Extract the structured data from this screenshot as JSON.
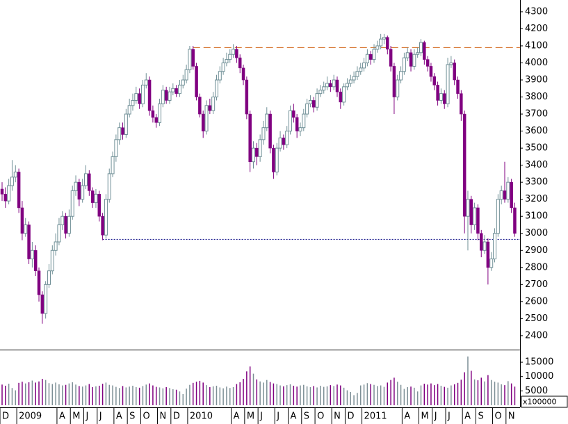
{
  "chart_data": {
    "type": "candlestick",
    "categories": [
      "D",
      null,
      null,
      null,
      null,
      "2009",
      null,
      null,
      null,
      null,
      null,
      null,
      null,
      null,
      null,
      null,
      null,
      "A",
      null,
      null,
      null,
      "M",
      null,
      null,
      null,
      "J",
      null,
      null,
      null,
      "J",
      null,
      null,
      null,
      null,
      "A",
      null,
      null,
      null,
      "S",
      null,
      null,
      null,
      "O",
      null,
      null,
      null,
      null,
      "N",
      null,
      null,
      null,
      "D",
      null,
      null,
      null,
      null,
      "2010",
      null,
      null,
      null,
      null,
      null,
      null,
      null,
      null,
      null,
      null,
      null,
      null,
      "A",
      null,
      null,
      null,
      "M",
      null,
      null,
      null,
      "J",
      null,
      null,
      null,
      null,
      "J",
      null,
      null,
      null,
      "A",
      null,
      null,
      null,
      "S",
      null,
      null,
      null,
      "O",
      null,
      null,
      null,
      null,
      "N",
      null,
      null,
      null,
      "D",
      null,
      null,
      null,
      null,
      "2011",
      null,
      null,
      null,
      null,
      null,
      null,
      null,
      null,
      null,
      null,
      null,
      "A",
      null,
      null,
      null,
      null,
      "M",
      null,
      null,
      null,
      "J",
      null,
      null,
      null,
      "J",
      null,
      null,
      null,
      null,
      "A",
      null,
      null,
      null,
      "S",
      null,
      null,
      null,
      null,
      "O",
      null,
      null,
      null,
      "N",
      null,
      null
    ],
    "ohlc": [
      [
        3260,
        3300,
        3190,
        3230
      ],
      [
        3230,
        3270,
        3150,
        3190
      ],
      [
        3190,
        3320,
        3170,
        3280
      ],
      [
        3280,
        3430,
        3250,
        3330
      ],
      [
        3330,
        3400,
        3300,
        3360
      ],
      [
        3360,
        3380,
        3120,
        3150
      ],
      [
        3150,
        3190,
        2960,
        3000
      ],
      [
        3000,
        3090,
        2980,
        3050
      ],
      [
        3050,
        3070,
        2820,
        2850
      ],
      [
        2850,
        2950,
        2800,
        2900
      ],
      [
        2900,
        2930,
        2750,
        2780
      ],
      [
        2780,
        2800,
        2600,
        2640
      ],
      [
        2640,
        2660,
        2470,
        2530
      ],
      [
        2530,
        2720,
        2500,
        2700
      ],
      [
        2700,
        2820,
        2680,
        2780
      ],
      [
        2780,
        2930,
        2760,
        2900
      ],
      [
        2900,
        3000,
        2870,
        2950
      ],
      [
        2950,
        3090,
        2930,
        3050
      ],
      [
        3050,
        3130,
        3020,
        3100
      ],
      [
        3100,
        3120,
        2970,
        3000
      ],
      [
        3000,
        3140,
        2980,
        3100
      ],
      [
        3100,
        3280,
        3080,
        3250
      ],
      [
        3250,
        3340,
        3220,
        3300
      ],
      [
        3300,
        3320,
        3160,
        3200
      ],
      [
        3200,
        3320,
        3180,
        3280
      ],
      [
        3280,
        3400,
        3260,
        3350
      ],
      [
        3350,
        3370,
        3220,
        3250
      ],
      [
        3250,
        3270,
        3150,
        3180
      ],
      [
        3180,
        3260,
        3150,
        3230
      ],
      [
        3230,
        3250,
        3070,
        3100
      ],
      [
        3100,
        3120,
        2960,
        2990
      ],
      [
        2990,
        3230,
        2970,
        3200
      ],
      [
        3200,
        3380,
        3180,
        3350
      ],
      [
        3350,
        3480,
        3330,
        3450
      ],
      [
        3450,
        3580,
        3420,
        3550
      ],
      [
        3550,
        3650,
        3520,
        3620
      ],
      [
        3620,
        3650,
        3550,
        3580
      ],
      [
        3580,
        3730,
        3560,
        3700
      ],
      [
        3700,
        3790,
        3680,
        3750
      ],
      [
        3750,
        3820,
        3720,
        3780
      ],
      [
        3780,
        3860,
        3760,
        3820
      ],
      [
        3820,
        3850,
        3730,
        3760
      ],
      [
        3760,
        3900,
        3740,
        3870
      ],
      [
        3870,
        3940,
        3850,
        3900
      ],
      [
        3900,
        3920,
        3690,
        3720
      ],
      [
        3720,
        3750,
        3650,
        3680
      ],
      [
        3680,
        3700,
        3620,
        3650
      ],
      [
        3650,
        3790,
        3630,
        3760
      ],
      [
        3760,
        3870,
        3740,
        3840
      ],
      [
        3840,
        3860,
        3760,
        3780
      ],
      [
        3780,
        3860,
        3760,
        3830
      ],
      [
        3830,
        3880,
        3810,
        3850
      ],
      [
        3850,
        3870,
        3800,
        3820
      ],
      [
        3820,
        3900,
        3800,
        3870
      ],
      [
        3870,
        3930,
        3850,
        3900
      ],
      [
        3900,
        3990,
        3880,
        3960
      ],
      [
        3960,
        4100,
        3940,
        4080
      ],
      [
        4080,
        4100,
        3960,
        3980
      ],
      [
        3980,
        4000,
        3780,
        3800
      ],
      [
        3800,
        3820,
        3680,
        3700
      ],
      [
        3700,
        3720,
        3560,
        3600
      ],
      [
        3600,
        3780,
        3580,
        3750
      ],
      [
        3750,
        3790,
        3700,
        3720
      ],
      [
        3720,
        3830,
        3700,
        3800
      ],
      [
        3800,
        3930,
        3780,
        3900
      ],
      [
        3900,
        3980,
        3880,
        3950
      ],
      [
        3950,
        4030,
        3930,
        4000
      ],
      [
        4000,
        4060,
        3980,
        4020
      ],
      [
        4020,
        4080,
        4000,
        4050
      ],
      [
        4050,
        4110,
        4030,
        4080
      ],
      [
        4080,
        4100,
        4000,
        4030
      ],
      [
        4030,
        4050,
        3940,
        3970
      ],
      [
        3970,
        3990,
        3870,
        3900
      ],
      [
        3900,
        3920,
        3670,
        3700
      ],
      [
        3700,
        3720,
        3360,
        3420
      ],
      [
        3420,
        3540,
        3380,
        3500
      ],
      [
        3500,
        3530,
        3400,
        3450
      ],
      [
        3450,
        3580,
        3420,
        3550
      ],
      [
        3550,
        3660,
        3520,
        3620
      ],
      [
        3620,
        3740,
        3600,
        3700
      ],
      [
        3700,
        3720,
        3470,
        3500
      ],
      [
        3500,
        3520,
        3320,
        3360
      ],
      [
        3360,
        3530,
        3340,
        3500
      ],
      [
        3500,
        3600,
        3480,
        3560
      ],
      [
        3560,
        3580,
        3490,
        3520
      ],
      [
        3520,
        3630,
        3500,
        3600
      ],
      [
        3600,
        3750,
        3580,
        3720
      ],
      [
        3720,
        3760,
        3650,
        3680
      ],
      [
        3680,
        3700,
        3560,
        3600
      ],
      [
        3600,
        3650,
        3570,
        3620
      ],
      [
        3620,
        3730,
        3600,
        3700
      ],
      [
        3700,
        3790,
        3680,
        3760
      ],
      [
        3760,
        3810,
        3740,
        3780
      ],
      [
        3780,
        3800,
        3710,
        3740
      ],
      [
        3740,
        3850,
        3720,
        3820
      ],
      [
        3820,
        3870,
        3800,
        3840
      ],
      [
        3840,
        3890,
        3820,
        3860
      ],
      [
        3860,
        3920,
        3840,
        3880
      ],
      [
        3880,
        3900,
        3830,
        3860
      ],
      [
        3860,
        3930,
        3840,
        3900
      ],
      [
        3900,
        3920,
        3800,
        3830
      ],
      [
        3830,
        3850,
        3730,
        3770
      ],
      [
        3770,
        3880,
        3750,
        3860
      ],
      [
        3860,
        3910,
        3840,
        3880
      ],
      [
        3880,
        3930,
        3860,
        3900
      ],
      [
        3900,
        3950,
        3880,
        3920
      ],
      [
        3920,
        3980,
        3900,
        3950
      ],
      [
        3950,
        4000,
        3930,
        3970
      ],
      [
        3970,
        4030,
        3950,
        4000
      ],
      [
        4000,
        4080,
        3980,
        4050
      ],
      [
        4050,
        4070,
        3990,
        4020
      ],
      [
        4020,
        4110,
        4000,
        4080
      ],
      [
        4080,
        4130,
        4060,
        4100
      ],
      [
        4100,
        4170,
        4080,
        4140
      ],
      [
        4140,
        4170,
        4110,
        4150
      ],
      [
        4150,
        4160,
        4050,
        4080
      ],
      [
        4080,
        4100,
        3950,
        3980
      ],
      [
        3980,
        4000,
        3700,
        3800
      ],
      [
        3800,
        3930,
        3780,
        3900
      ],
      [
        3900,
        3980,
        3880,
        3950
      ],
      [
        3950,
        4060,
        3930,
        4030
      ],
      [
        4030,
        4090,
        4010,
        4060
      ],
      [
        4060,
        4080,
        3950,
        3980
      ],
      [
        3980,
        4080,
        3960,
        4050
      ],
      [
        4050,
        4090,
        4030,
        4060
      ],
      [
        4060,
        4140,
        4040,
        4120
      ],
      [
        4120,
        4130,
        3990,
        4020
      ],
      [
        4020,
        4040,
        3950,
        3980
      ],
      [
        3980,
        4000,
        3890,
        3920
      ],
      [
        3920,
        3940,
        3840,
        3870
      ],
      [
        3870,
        3890,
        3750,
        3780
      ],
      [
        3780,
        3850,
        3760,
        3820
      ],
      [
        3820,
        3840,
        3730,
        3760
      ],
      [
        3760,
        4030,
        3740,
        3990
      ],
      [
        3990,
        4040,
        3970,
        4000
      ],
      [
        4000,
        4020,
        3870,
        3900
      ],
      [
        3900,
        3920,
        3790,
        3820
      ],
      [
        3820,
        3840,
        3660,
        3700
      ],
      [
        3700,
        3720,
        3000,
        3100
      ],
      [
        3100,
        3250,
        2900,
        3200
      ],
      [
        3200,
        3220,
        3000,
        3050
      ],
      [
        3050,
        3180,
        3020,
        3150
      ],
      [
        3150,
        3170,
        2960,
        3000
      ],
      [
        3000,
        3020,
        2860,
        2900
      ],
      [
        2900,
        2990,
        2880,
        2950
      ],
      [
        2950,
        2970,
        2700,
        2800
      ],
      [
        2800,
        2890,
        2780,
        2850
      ],
      [
        2850,
        3030,
        2830,
        3000
      ],
      [
        3000,
        3230,
        2980,
        3200
      ],
      [
        3200,
        3280,
        3170,
        3250
      ],
      [
        3250,
        3420,
        3180,
        3200
      ],
      [
        3200,
        3330,
        3180,
        3300
      ],
      [
        3300,
        3320,
        3120,
        3150
      ],
      [
        3150,
        3180,
        2980,
        3000
      ]
    ],
    "up_color": "#6f8f96",
    "down_color": "#800080",
    "ylim": [
      2318,
      4369
    ],
    "yticks": [
      2400,
      2500,
      2600,
      2700,
      2800,
      2900,
      3000,
      3100,
      3200,
      3300,
      3400,
      3500,
      3600,
      3700,
      3800,
      3900,
      4000,
      4100,
      4200,
      4300
    ],
    "reference_lines": [
      {
        "value": 4090,
        "from": 57,
        "color": "#d2691e",
        "style": "dashed"
      },
      {
        "value": 2965,
        "from": 30,
        "color": "#000080",
        "style": "dotted"
      }
    ],
    "volume": {
      "values": [
        7200,
        6800,
        7500,
        6000,
        5200,
        7800,
        8200,
        7600,
        8000,
        8600,
        7900,
        8300,
        9200,
        8800,
        7700,
        7400,
        7900,
        7300,
        6900,
        7100,
        7600,
        8000,
        7200,
        6700,
        6500,
        6900,
        7400,
        6300,
        6600,
        6800,
        7500,
        7900,
        7100,
        6900,
        6400,
        6000,
        6700,
        6200,
        6500,
        6800,
        6300,
        6100,
        6700,
        7200,
        7600,
        6900,
        6400,
        6200,
        5900,
        6300,
        6000,
        5600,
        5400,
        4800,
        3900,
        5800,
        7100,
        7800,
        8200,
        8500,
        7900,
        7000,
        6300,
        6600,
        6800,
        6200,
        5900,
        6500,
        6000,
        6300,
        7400,
        8000,
        9200,
        11800,
        13500,
        11000,
        9000,
        8300,
        7900,
        8800,
        8100,
        7600,
        7400,
        6900,
        6600,
        7000,
        7300,
        6800,
        6500,
        6900,
        7100,
        6600,
        6300,
        6700,
        6200,
        6800,
        6400,
        6600,
        7000,
        6700,
        7200,
        6900,
        6100,
        5200,
        4600,
        3500,
        4300,
        6900,
        7200,
        7700,
        7400,
        7100,
        6700,
        6900,
        6400,
        7900,
        8800,
        9600,
        8200,
        7100,
        5700,
        6300,
        6500,
        6100,
        4800,
        6900,
        7500,
        7200,
        7600,
        7000,
        7400,
        6800,
        6400,
        6100,
        6900,
        7300,
        7800,
        8900,
        11500,
        17000,
        12000,
        9000,
        8700,
        9600,
        8300,
        10500,
        8800,
        8200,
        7900,
        7300,
        7000,
        8400,
        7600,
        6500
      ],
      "ylim": [
        0,
        18900
      ],
      "yticks": [
        5000,
        10000,
        15000
      ],
      "multiplier_label": "x100000"
    }
  }
}
